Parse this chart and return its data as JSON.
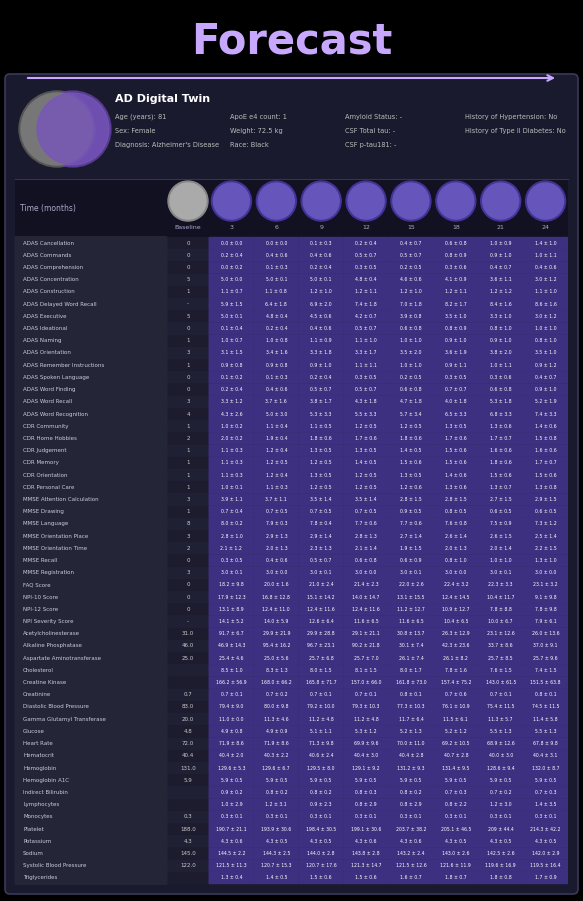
{
  "title": "Forecast",
  "title_color": "#c8a8ff",
  "arrow_color": "#c8a8ff",
  "bg_color": "#000000",
  "card_bg": "#1a1a2e",
  "card_border": "#3a3a5a",
  "patient_info": {
    "name": "AD Digital Twin",
    "details_col1": [
      "Age (years): 81",
      "Sex: Female",
      "Diagnosis: Alzheimer's Disease"
    ],
    "details_col2": [
      "ApoE e4 count: 1",
      "Weight: 72.5 kg",
      "Race: Black"
    ],
    "details_col3": [
      "Amyloid Status: -",
      "CSF Total tau: -",
      "CSF p-tau181: -"
    ],
    "details_col4": [
      "History of Hypertension: No",
      "History of Type II Diabetes: No"
    ]
  },
  "time_points": [
    "Baseline",
    "3",
    "6",
    "9",
    "12",
    "15",
    "18",
    "21",
    "24"
  ],
  "rows": [
    {
      "label": "ADAS Cancellation",
      "baseline": "0",
      "values": [
        "0.0 ± 0.0",
        "0.0 ± 0.0",
        "0.1 ± 0.3",
        "0.2 ± 0.4",
        "0.4 ± 0.7",
        "0.6 ± 0.8",
        "1.0 ± 0.9",
        "1.4 ± 1.0"
      ]
    },
    {
      "label": "ADAS Commands",
      "baseline": "0",
      "values": [
        "0.2 ± 0.4",
        "0.4 ± 0.6",
        "0.4 ± 0.6",
        "0.5 ± 0.7",
        "0.5 ± 0.7",
        "0.8 ± 0.9",
        "0.9 ± 1.0",
        "1.0 ± 1.1"
      ]
    },
    {
      "label": "ADAS Comprehension",
      "baseline": "0",
      "values": [
        "0.0 ± 0.2",
        "0.1 ± 0.3",
        "0.2 ± 0.4",
        "0.3 ± 0.5",
        "0.2 ± 0.5",
        "0.3 ± 0.6",
        "0.4 ± 0.7",
        "0.4 ± 0.6"
      ]
    },
    {
      "label": "ADAS Concentration",
      "baseline": "5",
      "values": [
        "5.0 ± 0.0",
        "5.0 ± 0.1",
        "5.0 ± 0.1",
        "4.8 ± 0.4",
        "4.6 ± 0.6",
        "4.1 ± 0.9",
        "3.6 ± 1.1",
        "3.0 ± 1.2"
      ]
    },
    {
      "label": "ADAS Construction",
      "baseline": "1",
      "values": [
        "1.1 ± 0.7",
        "1.1 ± 0.8",
        "1.2 ± 1.0",
        "1.2 ± 1.1",
        "1.2 ± 1.0",
        "1.2 ± 1.1",
        "1.2 ± 1.2",
        "1.1 ± 1.0"
      ]
    },
    {
      "label": "ADAS Delayed Word Recall",
      "baseline": "-",
      "values": [
        "5.9 ± 1.5",
        "6.4 ± 1.8",
        "6.9 ± 2.0",
        "7.4 ± 1.8",
        "7.0 ± 1.8",
        "8.2 ± 1.7",
        "8.4 ± 1.6",
        "8.6 ± 1.6"
      ]
    },
    {
      "label": "ADAS Executive",
      "baseline": "5",
      "values": [
        "5.0 ± 0.1",
        "4.8 ± 0.4",
        "4.5 ± 0.6",
        "4.2 ± 0.7",
        "3.9 ± 0.8",
        "3.5 ± 1.0",
        "3.3 ± 1.0",
        "3.0 ± 1.2"
      ]
    },
    {
      "label": "ADAS Ideational",
      "baseline": "0",
      "values": [
        "0.1 ± 0.4",
        "0.2 ± 0.4",
        "0.4 ± 0.6",
        "0.5 ± 0.7",
        "0.6 ± 0.8",
        "0.8 ± 0.9",
        "0.8 ± 1.0",
        "1.0 ± 1.0"
      ]
    },
    {
      "label": "ADAS Naming",
      "baseline": "1",
      "values": [
        "1.0 ± 0.7",
        "1.0 ± 0.8",
        "1.1 ± 0.9",
        "1.1 ± 1.0",
        "1.0 ± 1.0",
        "0.9 ± 1.0",
        "0.9 ± 1.0",
        "0.8 ± 1.0"
      ]
    },
    {
      "label": "ADAS Orientation",
      "baseline": "3",
      "values": [
        "3.1 ± 1.5",
        "3.4 ± 1.6",
        "3.3 ± 1.8",
        "3.3 ± 1.7",
        "3.5 ± 2.0",
        "3.6 ± 1.9",
        "3.8 ± 2.0",
        "3.5 ± 1.0"
      ]
    },
    {
      "label": "ADAS Remember Instructions",
      "baseline": "1",
      "values": [
        "0.9 ± 0.8",
        "0.9 ± 0.8",
        "0.9 ± 1.0",
        "1.1 ± 1.1",
        "1.0 ± 1.0",
        "0.9 ± 1.1",
        "1.0 ± 1.1",
        "0.9 ± 1.2"
      ]
    },
    {
      "label": "ADAS Spoken Language",
      "baseline": "0",
      "values": [
        "0.1 ± 0.2",
        "0.1 ± 0.3",
        "0.2 ± 0.4",
        "0.3 ± 0.5",
        "0.2 ± 0.5",
        "0.3 ± 0.5",
        "0.3 ± 0.6",
        "0.4 ± 0.7"
      ]
    },
    {
      "label": "ADAS Word Finding",
      "baseline": "0",
      "values": [
        "0.2 ± 0.4",
        "0.4 ± 0.6",
        "0.5 ± 0.7",
        "0.5 ± 0.7",
        "0.6 ± 0.8",
        "0.7 ± 0.7",
        "0.6 ± 0.8",
        "0.9 ± 1.0"
      ]
    },
    {
      "label": "ADAS Word Recall",
      "baseline": "3",
      "values": [
        "3.3 ± 1.2",
        "3.7 ± 1.6",
        "3.8 ± 1.7",
        "4.3 ± 1.8",
        "4.7 ± 1.8",
        "4.0 ± 1.8",
        "5.3 ± 1.8",
        "5.2 ± 1.9"
      ]
    },
    {
      "label": "ADAS Word Recognition",
      "baseline": "4",
      "values": [
        "4.3 ± 2.6",
        "5.0 ± 3.0",
        "5.3 ± 3.3",
        "5.5 ± 3.3",
        "5.7 ± 3.4",
        "6.5 ± 3.3",
        "6.8 ± 3.3",
        "7.4 ± 3.3"
      ]
    },
    {
      "label": "CDR Community",
      "baseline": "1",
      "values": [
        "1.0 ± 0.2",
        "1.1 ± 0.4",
        "1.1 ± 0.5",
        "1.2 ± 0.5",
        "1.2 ± 0.5",
        "1.3 ± 0.5",
        "1.3 ± 0.6",
        "1.4 ± 0.6"
      ]
    },
    {
      "label": "CDR Home Hobbies",
      "baseline": "2",
      "values": [
        "2.0 ± 0.2",
        "1.9 ± 0.4",
        "1.8 ± 0.6",
        "1.7 ± 0.6",
        "1.8 ± 0.6",
        "1.7 ± 0.6",
        "1.7 ± 0.7",
        "1.5 ± 0.8"
      ]
    },
    {
      "label": "CDR Judgement",
      "baseline": "1",
      "values": [
        "1.1 ± 0.3",
        "1.2 ± 0.4",
        "1.3 ± 0.5",
        "1.3 ± 0.5",
        "1.4 ± 0.5",
        "1.5 ± 0.6",
        "1.6 ± 0.6",
        "1.6 ± 0.6"
      ]
    },
    {
      "label": "CDR Memory",
      "baseline": "1",
      "values": [
        "1.1 ± 0.3",
        "1.2 ± 0.5",
        "1.2 ± 0.5",
        "1.4 ± 0.5",
        "1.5 ± 0.6",
        "1.5 ± 0.6",
        "1.8 ± 0.6",
        "1.7 ± 0.7"
      ]
    },
    {
      "label": "CDR Orientation",
      "baseline": "1",
      "values": [
        "1.1 ± 0.3",
        "1.2 ± 0.4",
        "1.3 ± 0.5",
        "1.2 ± 0.5",
        "1.3 ± 0.5",
        "1.4 ± 0.6",
        "1.5 ± 0.6",
        "1.5 ± 0.6"
      ]
    },
    {
      "label": "CDR Personal Care",
      "baseline": "1",
      "values": [
        "1.0 ± 0.1",
        "1.1 ± 0.3",
        "1.2 ± 0.5",
        "1.2 ± 0.5",
        "1.2 ± 0.6",
        "1.3 ± 0.6",
        "1.3 ± 0.7",
        "1.3 ± 0.8"
      ]
    },
    {
      "label": "MMSE Attention Calculation",
      "baseline": "3",
      "values": [
        "3.9 ± 1.1",
        "3.7 ± 1.1",
        "3.5 ± 1.4",
        "3.5 ± 1.4",
        "2.8 ± 1.5",
        "2.8 ± 1.5",
        "2.7 ± 1.5",
        "2.9 ± 1.5"
      ]
    },
    {
      "label": "MMSE Drawing",
      "baseline": "1",
      "values": [
        "0.7 ± 0.4",
        "0.7 ± 0.5",
        "0.7 ± 0.5",
        "0.7 ± 0.5",
        "0.9 ± 0.5",
        "0.8 ± 0.5",
        "0.6 ± 0.5",
        "0.6 ± 0.5"
      ]
    },
    {
      "label": "MMSE Language",
      "baseline": "8",
      "values": [
        "8.0 ± 0.2",
        "7.9 ± 0.3",
        "7.8 ± 0.4",
        "7.7 ± 0.6",
        "7.7 ± 0.6",
        "7.6 ± 0.8",
        "7.5 ± 0.9",
        "7.3 ± 1.2"
      ]
    },
    {
      "label": "MMSE Orientation Place",
      "baseline": "3",
      "values": [
        "2.8 ± 1.0",
        "2.9 ± 1.3",
        "2.9 ± 1.4",
        "2.8 ± 1.3",
        "2.7 ± 1.4",
        "2.6 ± 1.4",
        "2.6 ± 1.5",
        "2.5 ± 1.4"
      ]
    },
    {
      "label": "MMSE Orientation Time",
      "baseline": "2",
      "values": [
        "2.1 ± 1.2",
        "2.0 ± 1.3",
        "2.3 ± 1.3",
        "2.1 ± 1.4",
        "1.9 ± 1.5",
        "2.0 ± 1.3",
        "2.0 ± 1.4",
        "2.2 ± 1.5"
      ]
    },
    {
      "label": "MMSE Recall",
      "baseline": "0",
      "values": [
        "0.3 ± 0.5",
        "0.4 ± 0.6",
        "0.5 ± 0.7",
        "0.6 ± 0.8",
        "0.6 ± 0.9",
        "0.8 ± 1.0",
        "1.0 ± 1.0",
        "1.3 ± 1.0"
      ]
    },
    {
      "label": "MMSE Registration",
      "baseline": "3",
      "values": [
        "3.0 ± 0.1",
        "3.0 ± 0.0",
        "3.0 ± 0.1",
        "3.0 ± 0.0",
        "3.0 ± 0.1",
        "3.0 ± 0.0",
        "3.0 ± 0.1",
        "3.0 ± 0.0"
      ]
    },
    {
      "label": "FAQ Score",
      "baseline": "0",
      "values": [
        "18.2 ± 9.8",
        "20.0 ± 1.6",
        "21.0 ± 2.4",
        "21.4 ± 2.3",
        "22.0 ± 2.6",
        "22.4 ± 3.2",
        "22.3 ± 3.3",
        "23.1 ± 3.2"
      ]
    },
    {
      "label": "NPI-10 Score",
      "baseline": "0",
      "values": [
        "17.9 ± 12.3",
        "16.8 ± 12.8",
        "15.1 ± 14.2",
        "14.0 ± 14.7",
        "13.1 ± 15.5",
        "12.4 ± 14.5",
        "10.4 ± 11.7",
        "9.1 ± 9.8"
      ]
    },
    {
      "label": "NPI-12 Score",
      "baseline": "0",
      "values": [
        "13.1 ± 8.9",
        "12.4 ± 11.0",
        "12.4 ± 11.6",
        "12.4 ± 11.6",
        "11.2 ± 12.7",
        "10.9 ± 12.7",
        "7.8 ± 8.8",
        "7.8 ± 9.8"
      ]
    },
    {
      "label": "NPI Severity Score",
      "baseline": "-",
      "values": [
        "14.1 ± 5.2",
        "14.0 ± 5.9",
        "12.6 ± 6.4",
        "11.6 ± 6.5",
        "11.6 ± 6.5",
        "10.4 ± 6.5",
        "10.0 ± 6.7",
        "7.9 ± 6.1"
      ]
    },
    {
      "label": "Acetylcholinesterase",
      "baseline": "31.0",
      "values": [
        "91.7 ± 6.7",
        "29.9 ± 21.9",
        "29.9 ± 28.8",
        "29.1 ± 21.1",
        "30.8 ± 13.7",
        "26.3 ± 12.9",
        "23.1 ± 12.6",
        "26.0 ± 13.6"
      ]
    },
    {
      "label": "Alkaline Phosphatase",
      "baseline": "46.0",
      "values": [
        "46.9 ± 14.3",
        "95.4 ± 16.2",
        "96.7 ± 23.1",
        "90.2 ± 21.8",
        "30.1 ± 7.4",
        "42.3 ± 23.6",
        "33.7 ± 8.6",
        "37.0 ± 9.1"
      ]
    },
    {
      "label": "Aspartate Aminotransferase",
      "baseline": "25.0",
      "values": [
        "25.4 ± 4.6",
        "25.0 ± 5.6",
        "25.7 ± 6.8",
        "25.7 ± 7.0",
        "26.1 ± 7.4",
        "26.1 ± 8.2",
        "25.7 ± 8.5",
        "25.7 ± 9.6"
      ]
    },
    {
      "label": "Cholesterol",
      "baseline": "",
      "values": [
        "8.5 ± 1.0",
        "8.3 ± 1.3",
        "8.0 ± 1.5",
        "8.1 ± 1.5",
        "8.0 ± 1.7",
        "7.8 ± 1.6",
        "7.6 ± 1.5",
        "7.4 ± 1.5"
      ]
    },
    {
      "label": "Creatine Kinase",
      "baseline": "",
      "values": [
        "166.2 ± 56.9",
        "168.0 ± 66.2",
        "165.8 ± 71.7",
        "157.0 ± 66.0",
        "161.8 ± 73.0",
        "157.4 ± 75.2",
        "143.0 ± 61.5",
        "151.5 ± 63.8"
      ]
    },
    {
      "label": "Creatinine",
      "baseline": "0.7",
      "values": [
        "0.7 ± 0.1",
        "0.7 ± 0.2",
        "0.7 ± 0.1",
        "0.7 ± 0.1",
        "0.8 ± 0.1",
        "0.7 ± 0.6",
        "0.7 ± 0.1",
        "0.8 ± 0.1"
      ]
    },
    {
      "label": "Diastolic Blood Pressure",
      "baseline": "83.0",
      "values": [
        "79.4 ± 9.0",
        "80.0 ± 9.8",
        "79.2 ± 10.0",
        "79.3 ± 10.3",
        "77.3 ± 10.3",
        "76.1 ± 10.9",
        "75.4 ± 11.5",
        "74.5 ± 11.5"
      ]
    },
    {
      "label": "Gamma Glutamyl Transferase",
      "baseline": "20.0",
      "values": [
        "11.0 ± 0.0",
        "11.3 ± 4.6",
        "11.2 ± 4.8",
        "11.2 ± 4.8",
        "11.7 ± 6.4",
        "11.5 ± 6.1",
        "11.3 ± 5.7",
        "11.4 ± 5.8"
      ]
    },
    {
      "label": "Glucose",
      "baseline": "4.8",
      "values": [
        "4.9 ± 0.8",
        "4.9 ± 0.9",
        "5.1 ± 1.1",
        "5.3 ± 1.2",
        "5.2 ± 1.3",
        "5.2 ± 1.2",
        "5.5 ± 1.3",
        "5.5 ± 1.3"
      ]
    },
    {
      "label": "Heart Rate",
      "baseline": "72.0",
      "values": [
        "71.9 ± 8.6",
        "71.9 ± 8.6",
        "71.3 ± 9.8",
        "69.9 ± 9.6",
        "70.0 ± 11.0",
        "69.2 ± 10.5",
        "68.9 ± 12.6",
        "67.8 ± 9.8"
      ]
    },
    {
      "label": "Hematocrit",
      "baseline": "40.4",
      "values": [
        "40.4 ± 2.0",
        "40.3 ± 2.2",
        "40.6 ± 2.4",
        "40.4 ± 3.0",
        "40.4 ± 2.8",
        "40.7 ± 2.8",
        "40.0 ± 3.0",
        "40.4 ± 3.1"
      ]
    },
    {
      "label": "Hemoglobin",
      "baseline": "131.0",
      "values": [
        "129.6 ± 5.3",
        "129.6 ± 6.7",
        "129.5 ± 8.0",
        "129.1 ± 9.2",
        "131.2 ± 9.3",
        "131.4 ± 9.5",
        "128.6 ± 9.4",
        "132.0 ± 8.7"
      ]
    },
    {
      "label": "Hemoglobin A1C",
      "baseline": "5.9",
      "values": [
        "5.9 ± 0.5",
        "5.9 ± 0.5",
        "5.9 ± 0.5",
        "5.9 ± 0.5",
        "5.9 ± 0.5",
        "5.9 ± 0.5",
        "5.9 ± 0.5",
        "5.9 ± 0.5"
      ]
    },
    {
      "label": "Indirect Bilirubin",
      "baseline": "",
      "values": [
        "0.9 ± 0.2",
        "0.8 ± 0.2",
        "0.8 ± 0.2",
        "0.8 ± 0.3",
        "0.8 ± 0.2",
        "0.7 ± 0.3",
        "0.7 ± 0.2",
        "0.7 ± 0.3"
      ]
    },
    {
      "label": "Lymphocytes",
      "baseline": "",
      "values": [
        "1.0 ± 2.9",
        "1.2 ± 3.1",
        "0.9 ± 2.3",
        "0.8 ± 2.9",
        "0.8 ± 2.9",
        "0.8 ± 2.2",
        "1.2 ± 3.0",
        "1.4 ± 3.5"
      ]
    },
    {
      "label": "Monocytes",
      "baseline": "0.3",
      "values": [
        "0.3 ± 0.1",
        "0.3 ± 0.1",
        "0.3 ± 0.1",
        "0.3 ± 0.1",
        "0.3 ± 0.1",
        "0.3 ± 0.1",
        "0.3 ± 0.1",
        "0.3 ± 0.1"
      ]
    },
    {
      "label": "Platelet",
      "baseline": "188.0",
      "values": [
        "190.7 ± 21.1",
        "193.9 ± 30.6",
        "198.4 ± 30.5",
        "199.1 ± 30.6",
        "203.7 ± 38.2",
        "205.1 ± 46.5",
        "209 ± 44.4",
        "214.3 ± 42.2"
      ]
    },
    {
      "label": "Potassium",
      "baseline": "4.3",
      "values": [
        "4.3 ± 0.6",
        "4.3 ± 0.5",
        "4.3 ± 0.5",
        "4.3 ± 0.6",
        "4.3 ± 0.6",
        "4.3 ± 0.5",
        "4.3 ± 0.5",
        "4.3 ± 0.5"
      ]
    },
    {
      "label": "Sodium",
      "baseline": "145.0",
      "values": [
        "144.5 ± 2.2",
        "144.3 ± 2.5",
        "144.0 ± 2.8",
        "143.8 ± 2.8",
        "143.2 ± 2.4",
        "143.0 ± 2.6",
        "142.5 ± 2.6",
        "142.0 ± 2.9"
      ]
    },
    {
      "label": "Systolic Blood Pressure",
      "baseline": "122.0",
      "values": [
        "121.5 ± 11.3",
        "120.7 ± 15.3",
        "120.7 ± 17.6",
        "121.3 ± 14.7",
        "121.5 ± 12.6",
        "121.6 ± 11.9",
        "119.6 ± 16.9",
        "119.5 ± 16.4"
      ]
    },
    {
      "label": "Triglycerides",
      "baseline": "",
      "values": [
        "1.3 ± 0.4",
        "1.4 ± 0.5",
        "1.5 ± 0.6",
        "1.5 ± 0.6",
        "1.6 ± 0.7",
        "1.8 ± 0.7",
        "1.8 ± 0.8",
        "1.7 ± 0.9"
      ]
    }
  ]
}
